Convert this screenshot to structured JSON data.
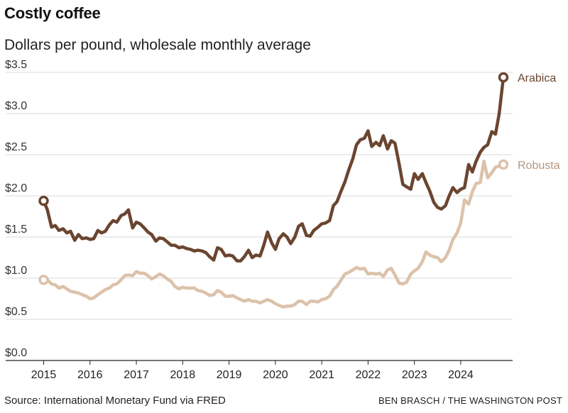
{
  "chart_data": {
    "type": "line",
    "title": "Costly coffee",
    "subtitle": "Dollars per pound, wholesale monthly average",
    "xlabel": "",
    "ylabel": "Dollars per pound",
    "xlim": [
      2014.85,
      2025.0
    ],
    "ylim": [
      0,
      3.5
    ],
    "grid": true,
    "y_ticks": [
      {
        "value": 0.0,
        "label": "$0.0"
      },
      {
        "value": 0.5,
        "label": "$0.5"
      },
      {
        "value": 1.0,
        "label": "$1.0"
      },
      {
        "value": 1.5,
        "label": "$1.5"
      },
      {
        "value": 2.0,
        "label": "$2.0"
      },
      {
        "value": 2.5,
        "label": "$2.5"
      },
      {
        "value": 3.0,
        "label": "$3.0"
      },
      {
        "value": 3.5,
        "label": "$3.5"
      }
    ],
    "x_ticks": [
      {
        "value": 2015,
        "label": "2015"
      },
      {
        "value": 2016,
        "label": "2016"
      },
      {
        "value": 2017,
        "label": "2017"
      },
      {
        "value": 2018,
        "label": "2018"
      },
      {
        "value": 2019,
        "label": "2019"
      },
      {
        "value": 2020,
        "label": "2020"
      },
      {
        "value": 2021,
        "label": "2021"
      },
      {
        "value": 2022,
        "label": "2022"
      },
      {
        "value": 2023,
        "label": "2023"
      },
      {
        "value": 2024,
        "label": "2024"
      }
    ],
    "series": [
      {
        "name": "Arabica",
        "color": "#6b4530",
        "x": [
          2015.0,
          2015.08,
          2015.17,
          2015.25,
          2015.33,
          2015.42,
          2015.5,
          2015.58,
          2015.67,
          2015.75,
          2015.83,
          2015.92,
          2016.0,
          2016.08,
          2016.17,
          2016.25,
          2016.33,
          2016.42,
          2016.5,
          2016.58,
          2016.67,
          2016.75,
          2016.83,
          2016.92,
          2017.0,
          2017.08,
          2017.17,
          2017.25,
          2017.33,
          2017.42,
          2017.5,
          2017.58,
          2017.67,
          2017.75,
          2017.83,
          2017.92,
          2018.0,
          2018.08,
          2018.17,
          2018.25,
          2018.33,
          2018.42,
          2018.5,
          2018.58,
          2018.67,
          2018.75,
          2018.83,
          2018.92,
          2019.0,
          2019.08,
          2019.17,
          2019.25,
          2019.33,
          2019.42,
          2019.5,
          2019.58,
          2019.67,
          2019.75,
          2019.83,
          2019.92,
          2020.0,
          2020.08,
          2020.17,
          2020.25,
          2020.33,
          2020.42,
          2020.5,
          2020.58,
          2020.67,
          2020.75,
          2020.83,
          2020.92,
          2021.0,
          2021.08,
          2021.17,
          2021.25,
          2021.33,
          2021.42,
          2021.5,
          2021.58,
          2021.67,
          2021.75,
          2021.83,
          2021.92,
          2022.0,
          2022.08,
          2022.17,
          2022.25,
          2022.33,
          2022.42,
          2022.5,
          2022.58,
          2022.67,
          2022.75,
          2022.83,
          2022.92,
          2023.0,
          2023.08,
          2023.17,
          2023.25,
          2023.33,
          2023.42,
          2023.5,
          2023.58,
          2023.67,
          2023.75,
          2023.83,
          2023.92,
          2024.0,
          2024.08,
          2024.17,
          2024.25,
          2024.33,
          2024.42,
          2024.5,
          2024.58,
          2024.67,
          2024.75,
          2024.83,
          2024.92
        ],
        "values": [
          1.94,
          1.83,
          1.62,
          1.64,
          1.58,
          1.6,
          1.55,
          1.57,
          1.46,
          1.53,
          1.48,
          1.49,
          1.47,
          1.48,
          1.58,
          1.55,
          1.57,
          1.65,
          1.7,
          1.68,
          1.76,
          1.78,
          1.83,
          1.61,
          1.68,
          1.66,
          1.61,
          1.56,
          1.53,
          1.45,
          1.49,
          1.48,
          1.44,
          1.4,
          1.4,
          1.37,
          1.38,
          1.36,
          1.35,
          1.33,
          1.34,
          1.33,
          1.31,
          1.26,
          1.22,
          1.37,
          1.35,
          1.27,
          1.28,
          1.27,
          1.21,
          1.21,
          1.26,
          1.34,
          1.25,
          1.28,
          1.27,
          1.4,
          1.56,
          1.43,
          1.35,
          1.48,
          1.54,
          1.5,
          1.42,
          1.5,
          1.63,
          1.66,
          1.52,
          1.51,
          1.58,
          1.62,
          1.66,
          1.67,
          1.7,
          1.88,
          1.93,
          2.06,
          2.17,
          2.31,
          2.45,
          2.62,
          2.68,
          2.7,
          2.79,
          2.6,
          2.65,
          2.61,
          2.73,
          2.57,
          2.67,
          2.64,
          2.39,
          2.14,
          2.11,
          2.08,
          2.27,
          2.2,
          2.27,
          2.16,
          2.06,
          1.92,
          1.86,
          1.84,
          1.88,
          2.0,
          2.1,
          2.04,
          2.08,
          2.1,
          2.38,
          2.29,
          2.42,
          2.53,
          2.59,
          2.62,
          2.78,
          2.75,
          3.0,
          3.44
        ]
      },
      {
        "name": "Robusta",
        "color": "#dcc2aa",
        "x": [
          2015.0,
          2015.08,
          2015.17,
          2015.25,
          2015.33,
          2015.42,
          2015.5,
          2015.58,
          2015.67,
          2015.75,
          2015.83,
          2015.92,
          2016.0,
          2016.08,
          2016.17,
          2016.25,
          2016.33,
          2016.42,
          2016.5,
          2016.58,
          2016.67,
          2016.75,
          2016.83,
          2016.92,
          2017.0,
          2017.08,
          2017.17,
          2017.25,
          2017.33,
          2017.42,
          2017.5,
          2017.58,
          2017.67,
          2017.75,
          2017.83,
          2017.92,
          2018.0,
          2018.08,
          2018.17,
          2018.25,
          2018.33,
          2018.42,
          2018.5,
          2018.58,
          2018.67,
          2018.75,
          2018.83,
          2018.92,
          2019.0,
          2019.08,
          2019.17,
          2019.25,
          2019.33,
          2019.42,
          2019.5,
          2019.58,
          2019.67,
          2019.75,
          2019.83,
          2019.92,
          2020.0,
          2020.08,
          2020.17,
          2020.25,
          2020.33,
          2020.42,
          2020.5,
          2020.58,
          2020.67,
          2020.75,
          2020.83,
          2020.92,
          2021.0,
          2021.08,
          2021.17,
          2021.25,
          2021.33,
          2021.42,
          2021.5,
          2021.58,
          2021.67,
          2021.75,
          2021.83,
          2021.92,
          2022.0,
          2022.08,
          2022.17,
          2022.25,
          2022.33,
          2022.42,
          2022.5,
          2022.58,
          2022.67,
          2022.75,
          2022.83,
          2022.92,
          2023.0,
          2023.08,
          2023.17,
          2023.25,
          2023.33,
          2023.42,
          2023.5,
          2023.58,
          2023.67,
          2023.75,
          2023.83,
          2023.92,
          2024.0,
          2024.08,
          2024.17,
          2024.25,
          2024.33,
          2024.42,
          2024.5,
          2024.58,
          2024.67,
          2024.75,
          2024.83,
          2024.92
        ],
        "values": [
          0.98,
          0.98,
          0.93,
          0.92,
          0.88,
          0.9,
          0.87,
          0.84,
          0.83,
          0.82,
          0.8,
          0.78,
          0.75,
          0.76,
          0.8,
          0.83,
          0.86,
          0.88,
          0.92,
          0.93,
          0.98,
          1.03,
          1.04,
          1.03,
          1.08,
          1.06,
          1.06,
          1.03,
          0.99,
          1.02,
          1.05,
          1.03,
          0.99,
          0.96,
          0.9,
          0.87,
          0.89,
          0.88,
          0.88,
          0.88,
          0.85,
          0.84,
          0.82,
          0.79,
          0.8,
          0.85,
          0.83,
          0.78,
          0.78,
          0.79,
          0.76,
          0.74,
          0.72,
          0.74,
          0.72,
          0.72,
          0.7,
          0.72,
          0.74,
          0.72,
          0.69,
          0.67,
          0.65,
          0.66,
          0.66,
          0.68,
          0.72,
          0.72,
          0.68,
          0.72,
          0.72,
          0.71,
          0.74,
          0.75,
          0.78,
          0.86,
          0.9,
          0.98,
          1.05,
          1.07,
          1.1,
          1.13,
          1.11,
          1.12,
          1.05,
          1.06,
          1.05,
          1.06,
          1.02,
          1.1,
          1.12,
          1.04,
          0.94,
          0.93,
          0.95,
          1.05,
          1.09,
          1.12,
          1.2,
          1.32,
          1.28,
          1.26,
          1.25,
          1.2,
          1.25,
          1.34,
          1.47,
          1.55,
          1.67,
          1.95,
          1.9,
          2.05,
          2.15,
          2.16,
          2.42,
          2.22,
          2.28,
          2.35,
          2.36,
          2.38
        ]
      }
    ]
  },
  "source_text": "Source: International Monetary Fund via FRED",
  "credit_text": "BEN BRASCH / THE WASHINGTON POST"
}
